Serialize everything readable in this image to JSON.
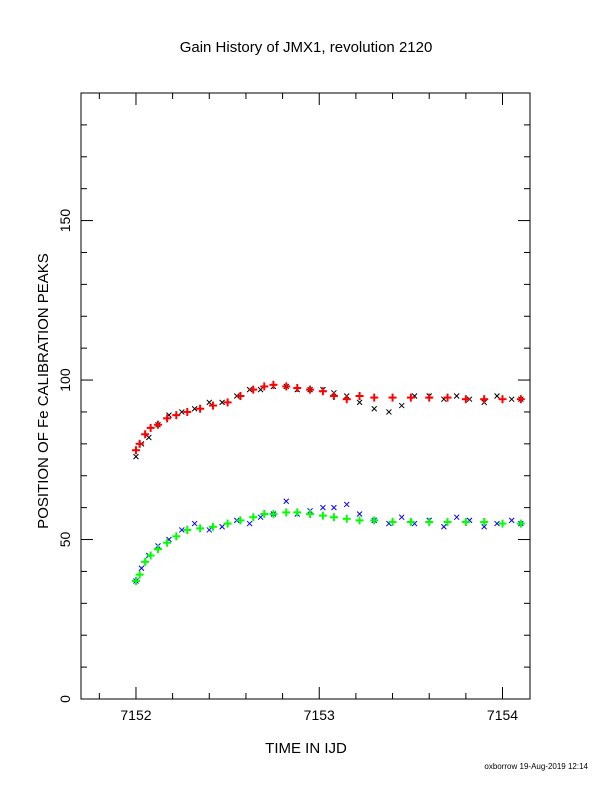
{
  "chart_data": {
    "type": "scatter",
    "title": "Gain History of JMX1, revolution 2120",
    "xlabel": "TIME IN IJD",
    "ylabel": "POSITION OF Fe CALIBRATION PEAKS",
    "xlim": [
      7151.7,
      7154.15
    ],
    "ylim": [
      0,
      190
    ],
    "x_ticks": [
      "7152",
      "7153",
      "7154"
    ],
    "y_ticks": [
      "0",
      "50",
      "100",
      "150"
    ],
    "grid": false,
    "series": [
      {
        "color": "#000000",
        "marker": "x",
        "x": [
          7152.0,
          7152.03,
          7152.07,
          7152.12,
          7152.18,
          7152.25,
          7152.32,
          7152.4,
          7152.47,
          7152.55,
          7152.62,
          7152.68,
          7152.75,
          7152.82,
          7152.88,
          7152.95,
          7153.02,
          7153.08,
          7153.15,
          7153.22,
          7153.3,
          7153.38,
          7153.45,
          7153.52,
          7153.6,
          7153.68,
          7153.75,
          7153.82,
          7153.9,
          7153.97,
          7154.05,
          7154.1
        ],
        "y": [
          76,
          80,
          82,
          86,
          89,
          90,
          91,
          93,
          93,
          95,
          97,
          97,
          98,
          98,
          97,
          97,
          97,
          96,
          95,
          93,
          91,
          90,
          92,
          95,
          95,
          94,
          95,
          94,
          93,
          95,
          94,
          94
        ]
      },
      {
        "color": "#ff0000",
        "marker": "+",
        "x": [
          7152.0,
          7152.02,
          7152.05,
          7152.08,
          7152.12,
          7152.17,
          7152.22,
          7152.28,
          7152.35,
          7152.42,
          7152.5,
          7152.57,
          7152.64,
          7152.7,
          7152.75,
          7152.82,
          7152.88,
          7152.95,
          7153.02,
          7153.08,
          7153.15,
          7153.22,
          7153.3,
          7153.4,
          7153.5,
          7153.6,
          7153.7,
          7153.8,
          7153.9,
          7154.0,
          7154.1
        ],
        "y": [
          78,
          80,
          83,
          85,
          86,
          88,
          89,
          90,
          91,
          92,
          93,
          95,
          97,
          98,
          98.5,
          98,
          97.5,
          97,
          96.5,
          95,
          94,
          95,
          94.5,
          94.5,
          94.5,
          94.5,
          94.5,
          94,
          94,
          94,
          94
        ]
      },
      {
        "color": "#0000ff",
        "marker": "x",
        "x": [
          7152.0,
          7152.03,
          7152.07,
          7152.12,
          7152.18,
          7152.25,
          7152.32,
          7152.4,
          7152.47,
          7152.55,
          7152.62,
          7152.68,
          7152.75,
          7152.82,
          7152.88,
          7152.95,
          7153.02,
          7153.08,
          7153.15,
          7153.22,
          7153.3,
          7153.38,
          7153.45,
          7153.52,
          7153.6,
          7153.68,
          7153.75,
          7153.82,
          7153.9,
          7153.97,
          7154.05,
          7154.1
        ],
        "y": [
          37,
          41,
          45,
          48,
          50,
          53,
          55,
          53,
          54,
          56,
          55,
          57,
          58,
          62,
          58,
          59,
          60,
          60,
          61,
          58,
          56,
          55,
          57,
          55,
          56,
          54,
          57,
          56,
          54,
          55,
          56,
          55
        ]
      },
      {
        "color": "#00ff00",
        "marker": "+",
        "x": [
          7152.0,
          7152.02,
          7152.05,
          7152.08,
          7152.12,
          7152.17,
          7152.22,
          7152.28,
          7152.35,
          7152.42,
          7152.5,
          7152.57,
          7152.64,
          7152.7,
          7152.75,
          7152.82,
          7152.88,
          7152.95,
          7153.02,
          7153.08,
          7153.15,
          7153.22,
          7153.3,
          7153.4,
          7153.5,
          7153.6,
          7153.7,
          7153.8,
          7153.9,
          7154.0,
          7154.1
        ],
        "y": [
          37,
          39,
          43,
          45,
          47,
          49,
          51,
          53,
          53.5,
          54,
          55,
          56,
          57,
          58,
          58,
          58.5,
          58.5,
          58,
          57.5,
          57,
          56.5,
          56,
          56,
          55.5,
          55.5,
          55.5,
          55.5,
          55.5,
          55.5,
          55,
          55
        ]
      }
    ]
  },
  "footer": {
    "stamp": "oxborrow 19-Aug-2019 12:14"
  }
}
